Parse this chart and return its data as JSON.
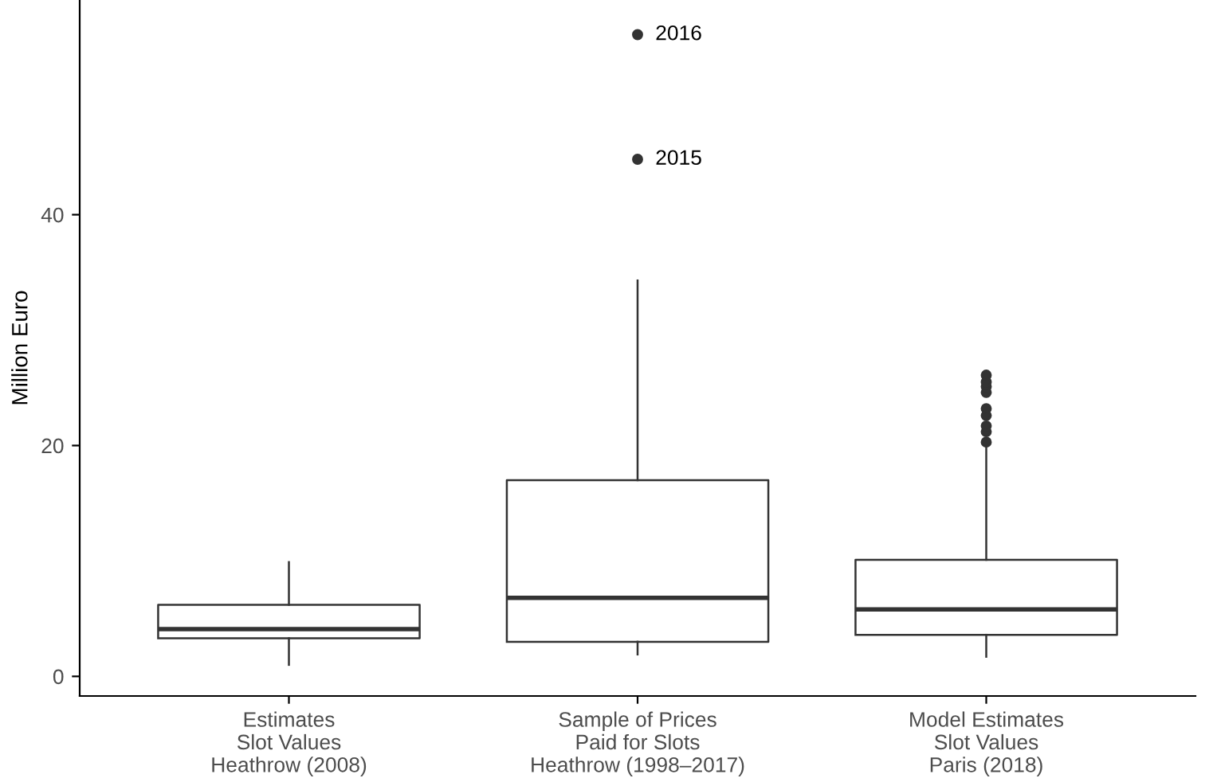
{
  "chart_data": {
    "type": "box",
    "ylabel": "Million Euro",
    "categories": [
      "Estimates\nSlot Values\nHeathrow (2008)",
      "Sample of Prices\nPaid for Slots\nHeathrow (1998–2017)",
      "Model Estimates\nSlot Values\nParis (2018)"
    ],
    "boxes": [
      {
        "low": 1.0,
        "q1": 3.3,
        "median": 4.1,
        "q3": 6.2,
        "high": 9.9
      },
      {
        "low": 1.9,
        "q1": 3.0,
        "median": 6.8,
        "q3": 17.0,
        "high": 34.3,
        "outliers": [
          44.8,
          55.6
        ]
      },
      {
        "low": 1.7,
        "q1": 3.6,
        "median": 5.8,
        "q3": 10.1,
        "high": 20.0,
        "outliers": [
          20.3,
          21.2,
          21.7,
          22.6,
          23.2,
          24.6,
          25.1,
          25.5,
          26.1
        ]
      }
    ],
    "color": "#333333",
    "ylim": [
      -1.7,
      58.6
    ],
    "yticks": [
      0,
      20,
      40
    ],
    "grid": false,
    "annotations": [
      "2016",
      "2015"
    ]
  }
}
